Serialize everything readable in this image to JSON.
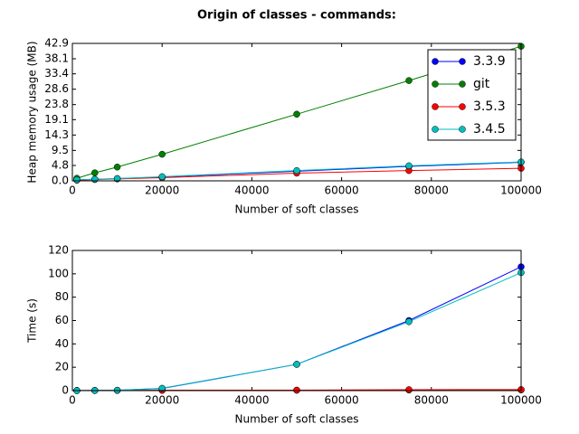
{
  "title": "Origin of classes - commands:",
  "chart_data": [
    {
      "type": "line",
      "xlabel": "Number of soft classes",
      "ylabel": "Heap memory usage (MB)",
      "x": [
        1000,
        5000,
        10000,
        20000,
        50000,
        75000,
        100000
      ],
      "xlim": [
        0,
        100000
      ],
      "xticks": [
        0,
        20000,
        40000,
        60000,
        80000,
        100000
      ],
      "ylim": [
        0,
        42.9
      ],
      "yticks": [
        {
          "value": 0,
          "label": "0.0"
        },
        4.8,
        9.5,
        14.3,
        19.1,
        23.8,
        28.6,
        33.4,
        38.1,
        42.9
      ],
      "legend": "upper right",
      "series": [
        {
          "name": "3.3.9",
          "color": "#0000ff",
          "values": [
            0.3,
            0.5,
            0.7,
            1.2,
            3.0,
            4.5,
            5.8
          ]
        },
        {
          "name": "git",
          "color": "#008000",
          "values": [
            0.8,
            2.5,
            4.3,
            8.3,
            20.8,
            31.3,
            42.0
          ]
        },
        {
          "name": "3.5.3",
          "color": "#ff0000",
          "values": [
            0.2,
            0.4,
            0.6,
            1.0,
            2.4,
            3.2,
            3.9
          ]
        },
        {
          "name": "3.4.5",
          "color": "#00bfbf",
          "values": [
            0.3,
            0.5,
            0.7,
            1.3,
            3.2,
            4.7,
            5.9
          ]
        }
      ]
    },
    {
      "type": "line",
      "xlabel": "Number of soft classes",
      "ylabel": "Time (s)",
      "x": [
        1000,
        5000,
        10000,
        20000,
        50000,
        75000,
        100000
      ],
      "xlim": [
        0,
        100000
      ],
      "xticks": [
        0,
        20000,
        40000,
        60000,
        80000,
        100000
      ],
      "ylim": [
        0,
        120
      ],
      "yticks": [
        0,
        20,
        40,
        60,
        80,
        100,
        120
      ],
      "series": [
        {
          "color": "#0000ff",
          "values": [
            0,
            0.1,
            0.3,
            1.8,
            22.5,
            60,
            106
          ]
        },
        {
          "color": "#008000",
          "values": [
            0.05,
            0.1,
            0.15,
            0.2,
            0.3,
            0.5,
            0.6
          ]
        },
        {
          "color": "#ff0000",
          "values": [
            0.1,
            0.1,
            0.2,
            0.3,
            0.4,
            0.8,
            0.9
          ]
        },
        {
          "color": "#00bfbf",
          "values": [
            0,
            0.1,
            0.3,
            2.0,
            22.5,
            59,
            101
          ]
        }
      ]
    }
  ]
}
